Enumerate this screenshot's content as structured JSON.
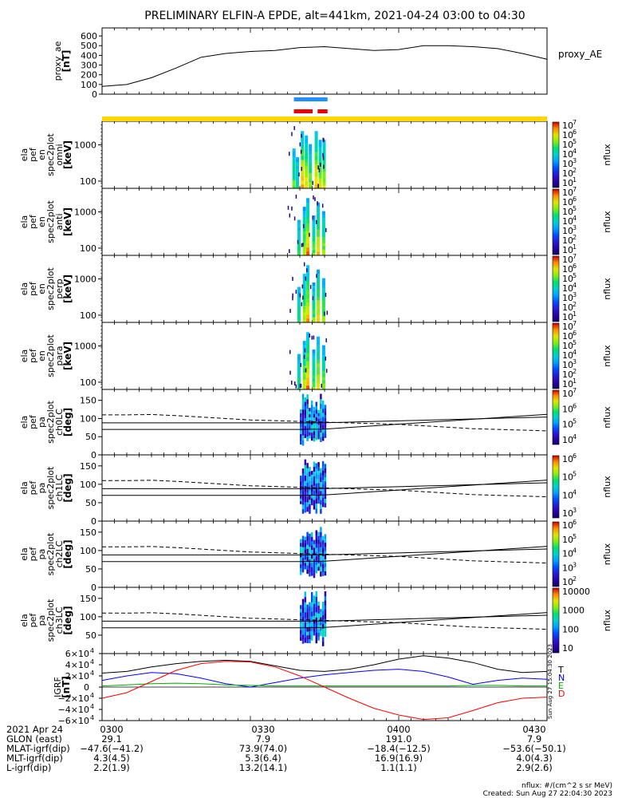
{
  "title": "PRELIMINARY ELFIN-A EPDE, alt=441km, 2021-04-24 03:00 to 04:30",
  "colors": {
    "black": "#000000",
    "blue": "#0000ff",
    "green": "#00b000",
    "red": "#ff0000",
    "yellow": "#ffd700",
    "bar_blue": "#1e90ff",
    "bar_red": "#ee0000"
  },
  "chart_data": [
    {
      "type": "line",
      "name": "proxy_ae",
      "ylabel_lines": [
        "proxy_ae",
        "[nT]"
      ],
      "legend": "proxy_AE",
      "yticks": [
        "600",
        "500",
        "400",
        "300",
        "200",
        "100",
        "0"
      ],
      "ylim": [
        0,
        650
      ],
      "x": [
        0,
        5,
        10,
        15,
        20,
        25,
        30,
        35,
        40,
        45,
        50,
        55,
        60,
        65,
        70,
        75,
        80,
        85,
        90
      ],
      "values": [
        80,
        100,
        170,
        270,
        380,
        420,
        440,
        450,
        480,
        490,
        470,
        450,
        460,
        500,
        500,
        490,
        470,
        420,
        360
      ]
    },
    {
      "type": "heatmap",
      "name": "omni_energy",
      "ylabel_lines": [
        "ela",
        "pef",
        "en",
        "spec2plot",
        "omni",
        "[keV]"
      ],
      "yticks": [
        "1000",
        "100"
      ],
      "colorbar_label": "nflux",
      "colorbar_ticks": [
        "10",
        "10",
        "10",
        "10",
        "10",
        "10",
        "10"
      ],
      "colorbar_exp": [
        "7",
        "6",
        "5",
        "4",
        "3",
        "2",
        "1"
      ]
    },
    {
      "type": "heatmap",
      "name": "anti_energy",
      "ylabel_lines": [
        "ela",
        "pef",
        "en",
        "spec2plot",
        "anti",
        "[keV]"
      ],
      "yticks": [
        "1000",
        "100"
      ],
      "colorbar_label": "nflux",
      "colorbar_ticks": [
        "10",
        "10",
        "10",
        "10",
        "10",
        "10",
        "10"
      ],
      "colorbar_exp": [
        "7",
        "6",
        "5",
        "4",
        "3",
        "2",
        "1"
      ]
    },
    {
      "type": "heatmap",
      "name": "perp_energy",
      "ylabel_lines": [
        "ela",
        "pef",
        "en",
        "spec2plot",
        "perp",
        "[keV]"
      ],
      "yticks": [
        "1000",
        "100"
      ],
      "colorbar_label": "nflux",
      "colorbar_ticks": [
        "10",
        "10",
        "10",
        "10",
        "10",
        "10",
        "10"
      ],
      "colorbar_exp": [
        "7",
        "6",
        "5",
        "4",
        "3",
        "2",
        "1"
      ]
    },
    {
      "type": "heatmap",
      "name": "para_energy",
      "ylabel_lines": [
        "ela",
        "pef",
        "en",
        "spec2plot",
        "para",
        "[keV]"
      ],
      "yticks": [
        "1000",
        "100"
      ],
      "colorbar_label": "nflux",
      "colorbar_ticks": [
        "10",
        "10",
        "10",
        "10",
        "10",
        "10",
        "10"
      ],
      "colorbar_exp": [
        "7",
        "6",
        "5",
        "4",
        "3",
        "2",
        "1"
      ]
    },
    {
      "type": "heatmap",
      "name": "ch0LC_pa",
      "ylabel_lines": [
        "ela",
        "pef",
        "pa",
        "spec2plot",
        "ch0LC",
        "[deg]"
      ],
      "yticks": [
        "150",
        "100",
        "50",
        "0"
      ],
      "ylim": [
        0,
        180
      ],
      "colorbar_label": "nflux",
      "colorbar_ticks": [
        "10",
        "10",
        "10",
        "10"
      ],
      "colorbar_exp": [
        "7",
        "6",
        "5",
        "4"
      ],
      "losscone": [
        110,
        110,
        111,
        108,
        104,
        100,
        96,
        94,
        92,
        90,
        88,
        86,
        84,
        80,
        76,
        72,
        70,
        68,
        66
      ]
    },
    {
      "type": "heatmap",
      "name": "ch1LC_pa",
      "ylabel_lines": [
        "ela",
        "pef",
        "pa",
        "spec2plot",
        "ch1LC",
        "[deg]"
      ],
      "yticks": [
        "150",
        "100",
        "50",
        "0"
      ],
      "ylim": [
        0,
        180
      ],
      "colorbar_label": "nflux",
      "colorbar_ticks": [
        "10",
        "10",
        "10",
        "10"
      ],
      "colorbar_exp": [
        "6",
        "5",
        "4",
        "3"
      ],
      "losscone": [
        110,
        110,
        111,
        108,
        104,
        100,
        96,
        94,
        92,
        90,
        88,
        86,
        84,
        80,
        76,
        72,
        70,
        68,
        66
      ]
    },
    {
      "type": "heatmap",
      "name": "ch2LC_pa",
      "ylabel_lines": [
        "ela",
        "pef",
        "pa",
        "spec2plot",
        "ch2LC",
        "[deg]"
      ],
      "yticks": [
        "150",
        "100",
        "50",
        "0"
      ],
      "ylim": [
        0,
        180
      ],
      "colorbar_label": "nflux",
      "colorbar_ticks": [
        "10",
        "10",
        "10",
        "10",
        "10"
      ],
      "colorbar_exp": [
        "6",
        "5",
        "4",
        "3",
        "2"
      ],
      "losscone": [
        110,
        110,
        111,
        108,
        104,
        100,
        96,
        94,
        92,
        90,
        88,
        86,
        84,
        80,
        76,
        72,
        70,
        68,
        66
      ]
    },
    {
      "type": "heatmap",
      "name": "ch3LC_pa",
      "ylabel_lines": [
        "ela",
        "pef",
        "pa",
        "spec2plot",
        "ch3LC",
        "[deg]"
      ],
      "yticks": [
        "150",
        "100",
        "50"
      ],
      "ylim": [
        0,
        180
      ],
      "colorbar_label": "nflux",
      "colorbar_ticks": [
        "10000",
        "1000",
        "100",
        "10"
      ],
      "colorbar_exp": [],
      "losscone": [
        110,
        110,
        111,
        108,
        104,
        100,
        96,
        94,
        92,
        90,
        88,
        86,
        84,
        80,
        76,
        72,
        70,
        68,
        66
      ]
    },
    {
      "type": "line",
      "name": "igrf",
      "ylabel_lines": [
        "IGRF",
        "[nT]"
      ],
      "yticks": [
        "6×10",
        "4×10",
        "2×10",
        "0",
        "−2×10",
        "−4×10",
        "−6×10"
      ],
      "ytick_exp": "4",
      "ylim": [
        -60000,
        60000
      ],
      "x": [
        0,
        5,
        10,
        15,
        20,
        25,
        30,
        35,
        40,
        45,
        50,
        55,
        60,
        65,
        70,
        75,
        80,
        85,
        90
      ],
      "series": [
        {
          "name": "T",
          "color": "#000000",
          "values": [
            25000,
            28000,
            36000,
            42000,
            46000,
            48000,
            46000,
            38000,
            30000,
            28000,
            32000,
            40000,
            50000,
            56000,
            52000,
            44000,
            32000,
            26000,
            28000
          ]
        },
        {
          "name": "N",
          "color": "#0000ff",
          "values": [
            12000,
            20000,
            26000,
            24000,
            16000,
            6000,
            0,
            8000,
            16000,
            22000,
            26000,
            30000,
            32000,
            28000,
            18000,
            5000,
            12000,
            16000,
            14000
          ]
        },
        {
          "name": "E",
          "color": "#00b000",
          "values": [
            2000,
            4000,
            6000,
            7000,
            6000,
            4000,
            3000,
            2000,
            2000,
            2000,
            2000,
            2000,
            2000,
            2000,
            2000,
            3000,
            3000,
            2000,
            2000
          ]
        },
        {
          "name": "D",
          "color": "#ff0000",
          "values": [
            -20000,
            -10000,
            10000,
            30000,
            42000,
            46000,
            45000,
            36000,
            20000,
            0,
            -20000,
            -38000,
            -50000,
            -58000,
            -55000,
            -42000,
            -28000,
            -20000,
            -18000
          ]
        }
      ]
    }
  ],
  "footer": {
    "stamp": "Sun Aug 27 15:04:30 2023",
    "rows": [
      {
        "label": "2021 Apr 24",
        "values": [
          "0300",
          "0330",
          "0400",
          "0430"
        ]
      },
      {
        "label": "GLON (east)",
        "values": [
          "29.1",
          "7.9",
          "191.0",
          "7.9"
        ]
      },
      {
        "label": "MLAT-igrf(dip)",
        "values": [
          "−47.6(−41.2)",
          "73.9(74.0)",
          "−18.4(−12.5)",
          "−53.6(−50.1)"
        ]
      },
      {
        "label": "MLT-igrf(dip)",
        "values": [
          "4.3(4.5)",
          "5.3(6.4)",
          "16.9(16.9)",
          "4.0(4.3)"
        ]
      },
      {
        "label": "L-igrf(dip)",
        "values": [
          "2.2(1.9)",
          "13.2(14.1)",
          "1.1(1.1)",
          "2.9(2.6)"
        ]
      }
    ],
    "units": "nflux: #/(cm^2 s sr MeV)",
    "created": "Created: Sun Aug 27 22:04:30 2023"
  }
}
